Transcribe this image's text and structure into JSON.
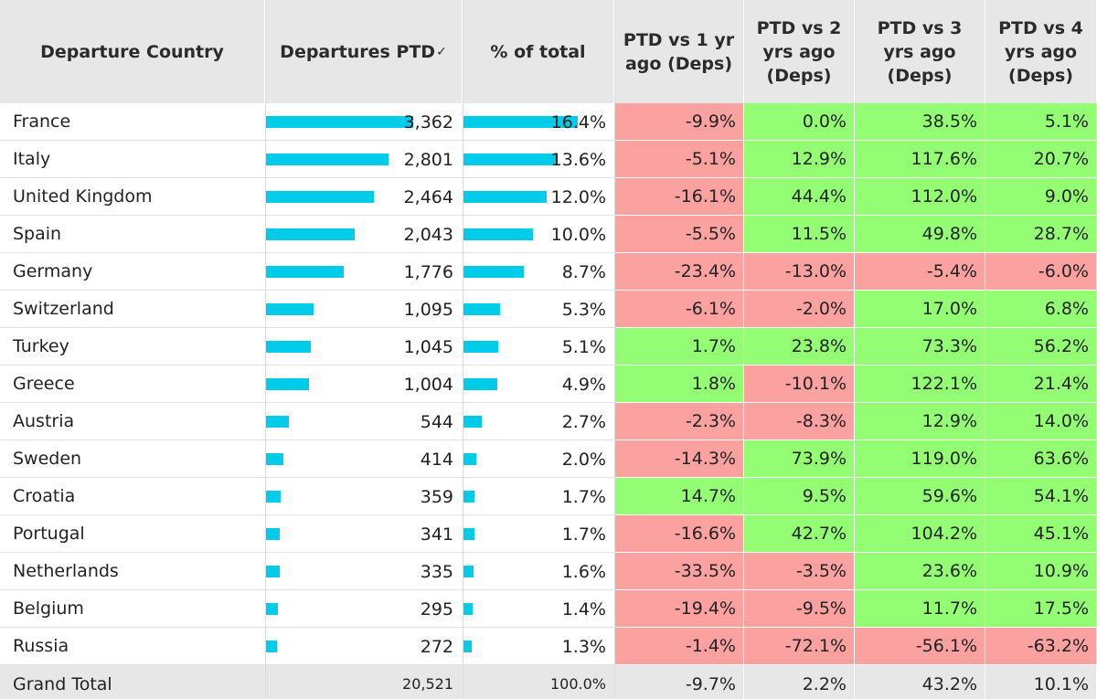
{
  "headers": {
    "country": "Departure Country",
    "departures": "Departures PTD",
    "sort_icon": "✓",
    "share": "% of total",
    "vs1": "PTD vs 1 yr ago (Deps)",
    "vs2": "PTD vs 2 yrs ago (Deps)",
    "vs3": "PTD vs 3 yrs ago (Deps)",
    "vs4": "PTD vs 4 yrs ago (Deps)"
  },
  "colors": {
    "bar": "#00ccea",
    "negative": "#fba1a0",
    "positive": "#93fd74",
    "header": "#e7e7e7"
  },
  "chart_data": {
    "type": "table",
    "columns": [
      "Departure Country",
      "Departures PTD",
      "% of total",
      "PTD vs 1 yr ago (Deps)",
      "PTD vs 2 yrs ago (Deps)",
      "PTD vs 3 yrs ago (Deps)",
      "PTD vs 4 yrs ago (Deps)"
    ],
    "rows": [
      {
        "country": "France",
        "deps": 3362,
        "deps_label": "3,362",
        "share": 16.4,
        "share_label": "16.4%",
        "vs": [
          -9.9,
          0.0,
          38.5,
          5.1
        ],
        "vs_labels": [
          "-9.9%",
          "0.0%",
          "38.5%",
          "5.1%"
        ]
      },
      {
        "country": "Italy",
        "deps": 2801,
        "deps_label": "2,801",
        "share": 13.6,
        "share_label": "13.6%",
        "vs": [
          -5.1,
          12.9,
          117.6,
          20.7
        ],
        "vs_labels": [
          "-5.1%",
          "12.9%",
          "117.6%",
          "20.7%"
        ]
      },
      {
        "country": "United Kingdom",
        "deps": 2464,
        "deps_label": "2,464",
        "share": 12.0,
        "share_label": "12.0%",
        "vs": [
          -16.1,
          44.4,
          112.0,
          9.0
        ],
        "vs_labels": [
          "-16.1%",
          "44.4%",
          "112.0%",
          "9.0%"
        ]
      },
      {
        "country": "Spain",
        "deps": 2043,
        "deps_label": "2,043",
        "share": 10.0,
        "share_label": "10.0%",
        "vs": [
          -5.5,
          11.5,
          49.8,
          28.7
        ],
        "vs_labels": [
          "-5.5%",
          "11.5%",
          "49.8%",
          "28.7%"
        ]
      },
      {
        "country": "Germany",
        "deps": 1776,
        "deps_label": "1,776",
        "share": 8.7,
        "share_label": "8.7%",
        "vs": [
          -23.4,
          -13.0,
          -5.4,
          -6.0
        ],
        "vs_labels": [
          "-23.4%",
          "-13.0%",
          "-5.4%",
          "-6.0%"
        ]
      },
      {
        "country": "Switzerland",
        "deps": 1095,
        "deps_label": "1,095",
        "share": 5.3,
        "share_label": "5.3%",
        "vs": [
          -6.1,
          -2.0,
          17.0,
          6.8
        ],
        "vs_labels": [
          "-6.1%",
          "-2.0%",
          "17.0%",
          "6.8%"
        ]
      },
      {
        "country": "Turkey",
        "deps": 1045,
        "deps_label": "1,045",
        "share": 5.1,
        "share_label": "5.1%",
        "vs": [
          1.7,
          23.8,
          73.3,
          56.2
        ],
        "vs_labels": [
          "1.7%",
          "23.8%",
          "73.3%",
          "56.2%"
        ]
      },
      {
        "country": "Greece",
        "deps": 1004,
        "deps_label": "1,004",
        "share": 4.9,
        "share_label": "4.9%",
        "vs": [
          1.8,
          -10.1,
          122.1,
          21.4
        ],
        "vs_labels": [
          "1.8%",
          "-10.1%",
          "122.1%",
          "21.4%"
        ]
      },
      {
        "country": "Austria",
        "deps": 544,
        "deps_label": "544",
        "share": 2.7,
        "share_label": "2.7%",
        "vs": [
          -2.3,
          -8.3,
          12.9,
          14.0
        ],
        "vs_labels": [
          "-2.3%",
          "-8.3%",
          "12.9%",
          "14.0%"
        ]
      },
      {
        "country": "Sweden",
        "deps": 414,
        "deps_label": "414",
        "share": 2.0,
        "share_label": "2.0%",
        "vs": [
          -14.3,
          73.9,
          119.0,
          63.6
        ],
        "vs_labels": [
          "-14.3%",
          "73.9%",
          "119.0%",
          "63.6%"
        ]
      },
      {
        "country": "Croatia",
        "deps": 359,
        "deps_label": "359",
        "share": 1.7,
        "share_label": "1.7%",
        "vs": [
          14.7,
          9.5,
          59.6,
          54.1
        ],
        "vs_labels": [
          "14.7%",
          "9.5%",
          "59.6%",
          "54.1%"
        ]
      },
      {
        "country": "Portugal",
        "deps": 341,
        "deps_label": "341",
        "share": 1.7,
        "share_label": "1.7%",
        "vs": [
          -16.6,
          42.7,
          104.2,
          45.1
        ],
        "vs_labels": [
          "-16.6%",
          "42.7%",
          "104.2%",
          "45.1%"
        ]
      },
      {
        "country": "Netherlands",
        "deps": 335,
        "deps_label": "335",
        "share": 1.6,
        "share_label": "1.6%",
        "vs": [
          -33.5,
          -3.5,
          23.6,
          10.9
        ],
        "vs_labels": [
          "-33.5%",
          "-3.5%",
          "23.6%",
          "10.9%"
        ]
      },
      {
        "country": "Belgium",
        "deps": 295,
        "deps_label": "295",
        "share": 1.4,
        "share_label": "1.4%",
        "vs": [
          -19.4,
          -9.5,
          11.7,
          17.5
        ],
        "vs_labels": [
          "-19.4%",
          "-9.5%",
          "11.7%",
          "17.5%"
        ]
      },
      {
        "country": "Russia",
        "deps": 272,
        "deps_label": "272",
        "share": 1.3,
        "share_label": "1.3%",
        "vs": [
          -1.4,
          -72.1,
          -56.1,
          -63.2
        ],
        "vs_labels": [
          "-1.4%",
          "-72.1%",
          "-56.1%",
          "-63.2%"
        ]
      }
    ],
    "total": {
      "label": "Grand Total",
      "deps_label": "20,521",
      "share_label": "100.0%",
      "vs_labels": [
        "-9.7%",
        "2.2%",
        "43.2%",
        "10.1%"
      ]
    }
  }
}
